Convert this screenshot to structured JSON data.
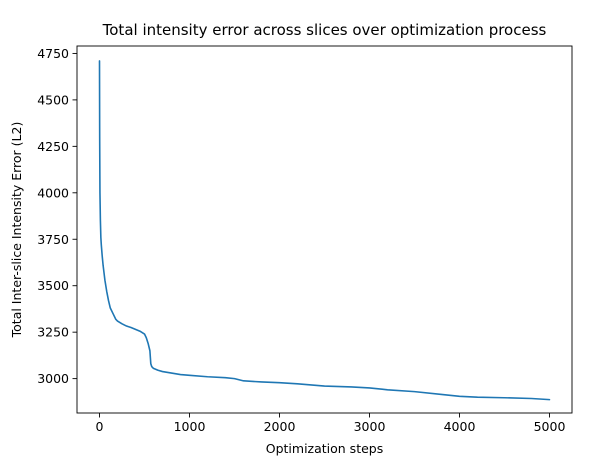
{
  "chart_data": {
    "type": "line",
    "title": "Total intensity error across slices over optimization process",
    "xlabel": "Optimization steps",
    "ylabel": "Total Inter-slice Intensity Error (L2)",
    "xlim": [
      -250,
      5250
    ],
    "ylim": [
      2815,
      4790
    ],
    "x_ticks": [
      0,
      1000,
      2000,
      3000,
      4000,
      5000
    ],
    "x_tick_labels": [
      "0",
      "1000",
      "2000",
      "3000",
      "4000",
      "5000"
    ],
    "y_ticks": [
      3000,
      3250,
      3500,
      3750,
      4000,
      4250,
      4500,
      4750
    ],
    "y_tick_labels": [
      "3000",
      "3250",
      "3500",
      "3750",
      "4000",
      "4250",
      "4500",
      "4750"
    ],
    "grid": false,
    "legend": "none",
    "colors": {
      "line": "#1f77b4",
      "axes": "#000000",
      "background": "#ffffff"
    },
    "series": [
      {
        "x": [
          0,
          2,
          5,
          10,
          15,
          20,
          30,
          40,
          50,
          60,
          80,
          100,
          120,
          150,
          180,
          200,
          250,
          300,
          350,
          400,
          450,
          500,
          520,
          540,
          560,
          570,
          580,
          600,
          650,
          700,
          800,
          900,
          1000,
          1200,
          1400,
          1500,
          1600,
          1800,
          2000,
          2200,
          2500,
          2800,
          3000,
          3200,
          3500,
          3800,
          4000,
          4200,
          4500,
          4800,
          5000
        ],
        "y": [
          4710,
          4300,
          4000,
          3850,
          3760,
          3720,
          3660,
          3610,
          3570,
          3530,
          3470,
          3420,
          3380,
          3350,
          3320,
          3310,
          3295,
          3283,
          3275,
          3265,
          3255,
          3240,
          3220,
          3190,
          3150,
          3080,
          3065,
          3055,
          3045,
          3038,
          3030,
          3022,
          3018,
          3010,
          3005,
          3000,
          2988,
          2982,
          2978,
          2972,
          2960,
          2955,
          2950,
          2940,
          2930,
          2915,
          2905,
          2900,
          2897,
          2893,
          2887
        ]
      }
    ]
  }
}
